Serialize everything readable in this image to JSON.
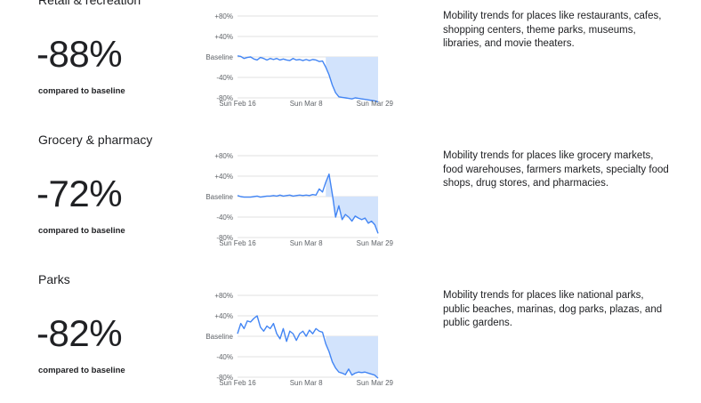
{
  "sections": [
    {
      "title": "Retail & recreation",
      "percent": "-88%",
      "compared_label": "compared to baseline",
      "description": "Mobility trends for places like restaurants, cafes, shopping centers, theme parks, museums, libraries, and movie theaters."
    },
    {
      "title": "Grocery & pharmacy",
      "percent": "-72%",
      "compared_label": "compared to baseline",
      "description": "Mobility trends for places like grocery markets, food warehouses, farmers markets, specialty food shops, drug stores, and pharmacies."
    },
    {
      "title": "Parks",
      "percent": "-82%",
      "compared_label": "compared to baseline",
      "description": "Mobility trends for places like national parks, public beaches, marinas, dog parks, plazas, and public gardens."
    }
  ],
  "chart_data": [
    {
      "type": "line",
      "y_tick_labels": [
        "+80%",
        "+40%",
        "Baseline",
        "-40%",
        "-80%"
      ],
      "y_ticks": [
        80,
        40,
        0,
        -40,
        -80
      ],
      "x_tick_labels": [
        "Sun Feb 16",
        "Sun Mar 8",
        "Sun Mar 29"
      ],
      "x_ticks": [
        0,
        21,
        42
      ],
      "ylim": [
        -80,
        80
      ],
      "xlim": [
        0,
        43
      ],
      "grid": true,
      "baseline_window": [
        27,
        43
      ],
      "line_color": "#4285f4",
      "fill_color": "#d2e3fc",
      "x": [
        0,
        1,
        2,
        3,
        4,
        5,
        6,
        7,
        8,
        9,
        10,
        11,
        12,
        13,
        14,
        15,
        16,
        17,
        18,
        19,
        20,
        21,
        22,
        23,
        24,
        25,
        26,
        27,
        28,
        29,
        30,
        31,
        32,
        33,
        34,
        35,
        36,
        37,
        38,
        39,
        40,
        41,
        42,
        43
      ],
      "values": [
        2,
        1,
        -3,
        -1,
        0,
        -4,
        -6,
        -1,
        -3,
        -6,
        -3,
        -5,
        -3,
        -6,
        -4,
        -6,
        -7,
        -3,
        -6,
        -5,
        -7,
        -5,
        -7,
        -5,
        -6,
        -9,
        -8,
        -20,
        -35,
        -55,
        -70,
        -78,
        -79,
        -80,
        -81,
        -82,
        -80,
        -81,
        -82,
        -83,
        -84,
        -85,
        -86,
        -88
      ]
    },
    {
      "type": "line",
      "y_tick_labels": [
        "+80%",
        "+40%",
        "Baseline",
        "-40%",
        "-80%"
      ],
      "y_ticks": [
        80,
        40,
        0,
        -40,
        -80
      ],
      "x_tick_labels": [
        "Sun Feb 16",
        "Sun Mar 8",
        "Sun Mar 29"
      ],
      "x_ticks": [
        0,
        21,
        42
      ],
      "ylim": [
        -80,
        80
      ],
      "xlim": [
        0,
        43
      ],
      "grid": true,
      "baseline_window": [
        27,
        43
      ],
      "line_color": "#4285f4",
      "fill_color": "#d2e3fc",
      "x": [
        0,
        1,
        2,
        3,
        4,
        5,
        6,
        7,
        8,
        9,
        10,
        11,
        12,
        13,
        14,
        15,
        16,
        17,
        18,
        19,
        20,
        21,
        22,
        23,
        24,
        25,
        26,
        27,
        28,
        29,
        30,
        31,
        32,
        33,
        34,
        35,
        36,
        37,
        38,
        39,
        40,
        41,
        42,
        43
      ],
      "values": [
        2,
        0,
        -1,
        -1,
        -1,
        0,
        1,
        -1,
        0,
        1,
        1,
        2,
        1,
        3,
        1,
        2,
        3,
        1,
        2,
        3,
        2,
        3,
        2,
        4,
        3,
        15,
        9,
        28,
        44,
        5,
        -40,
        -18,
        -45,
        -35,
        -40,
        -48,
        -38,
        -42,
        -45,
        -42,
        -52,
        -48,
        -55,
        -72
      ]
    },
    {
      "type": "line",
      "y_tick_labels": [
        "+80%",
        "+40%",
        "Baseline",
        "-40%",
        "-80%"
      ],
      "y_ticks": [
        80,
        40,
        0,
        -40,
        -80
      ],
      "x_tick_labels": [
        "Sun Feb 16",
        "Sun Mar 8",
        "Sun Mar 29"
      ],
      "x_ticks": [
        0,
        21,
        42
      ],
      "ylim": [
        -80,
        80
      ],
      "xlim": [
        0,
        43
      ],
      "grid": true,
      "baseline_window": [
        27,
        43
      ],
      "line_color": "#4285f4",
      "fill_color": "#d2e3fc",
      "x": [
        0,
        1,
        2,
        3,
        4,
        5,
        6,
        7,
        8,
        9,
        10,
        11,
        12,
        13,
        14,
        15,
        16,
        17,
        18,
        19,
        20,
        21,
        22,
        23,
        24,
        25,
        26,
        27,
        28,
        29,
        30,
        31,
        32,
        33,
        34,
        35,
        36,
        37,
        38,
        39,
        40,
        41,
        42,
        43
      ],
      "values": [
        5,
        25,
        15,
        30,
        28,
        35,
        40,
        18,
        10,
        20,
        15,
        25,
        5,
        -5,
        15,
        -10,
        10,
        5,
        -8,
        5,
        10,
        0,
        12,
        5,
        15,
        10,
        8,
        -15,
        -30,
        -50,
        -62,
        -70,
        -72,
        -75,
        -64,
        -76,
        -72,
        -70,
        -71,
        -70,
        -72,
        -74,
        -76,
        -82
      ]
    }
  ]
}
